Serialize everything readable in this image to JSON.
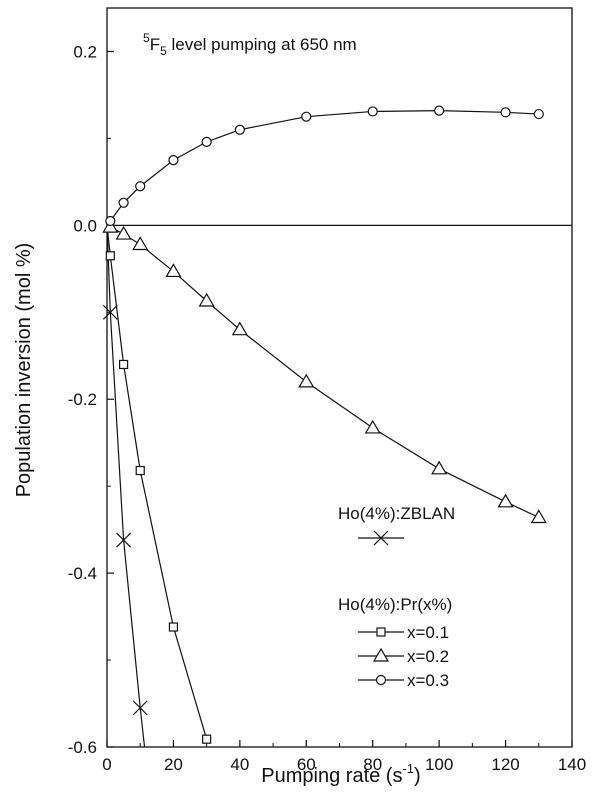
{
  "chart_data": {
    "type": "line",
    "title": "",
    "annotation": {
      "superscript": "5",
      "level": "F",
      "subscript": "5",
      "rest": " level pumping at 650 nm"
    },
    "xlabel": {
      "main": "Pumping rate (s",
      "sup": "-1",
      "end": ")"
    },
    "ylabel": "Population inversion (mol %)",
    "xlim": [
      0,
      140
    ],
    "ylim": [
      -0.6,
      0.25
    ],
    "xticks": [
      0,
      20,
      40,
      60,
      80,
      100,
      120,
      140
    ],
    "yticks": [
      -0.6,
      -0.4,
      -0.2,
      0.0,
      0.2
    ],
    "xtick_labels": [
      "0",
      "20",
      "40",
      "60",
      "80",
      "100",
      "120",
      "140"
    ],
    "ytick_labels": [
      "-0.6",
      "-0.4",
      "-0.2",
      "0.0",
      "0.2"
    ],
    "legend_placement": "lower-right",
    "legend": {
      "group1_heading": "Ho(4%):ZBLAN",
      "group2_heading": "Ho(4%):Pr(x%)",
      "entry_labels": [
        "x=0.1",
        "x=0.2",
        "x=0.3"
      ]
    },
    "series": [
      {
        "name": "Ho(4%):ZBLAN",
        "marker": "x",
        "x": [
          0,
          1,
          5,
          10,
          11.3
        ],
        "y": [
          0,
          -0.1,
          -0.362,
          -0.555,
          -0.6
        ]
      },
      {
        "name": "x=0.1",
        "marker": "square",
        "x": [
          0,
          1,
          5,
          10,
          20,
          30
        ],
        "y": [
          0,
          -0.035,
          -0.16,
          -0.282,
          -0.462,
          -0.591
        ]
      },
      {
        "name": "x=0.2",
        "marker": "triangle",
        "x": [
          0,
          1,
          5,
          10,
          20,
          30,
          40,
          60,
          80,
          100,
          120,
          130
        ],
        "y": [
          0,
          -0.002,
          -0.01,
          -0.022,
          -0.053,
          -0.087,
          -0.12,
          -0.18,
          -0.233,
          -0.28,
          -0.318,
          -0.336
        ]
      },
      {
        "name": "x=0.3",
        "marker": "circle",
        "x": [
          0,
          1,
          5,
          10,
          20,
          30,
          40,
          60,
          80,
          100,
          120,
          130
        ],
        "y": [
          0,
          0.005,
          0.026,
          0.045,
          0.075,
          0.096,
          0.11,
          0.125,
          0.131,
          0.132,
          0.13,
          0.128
        ]
      }
    ],
    "reference_line": {
      "y": 0
    }
  }
}
